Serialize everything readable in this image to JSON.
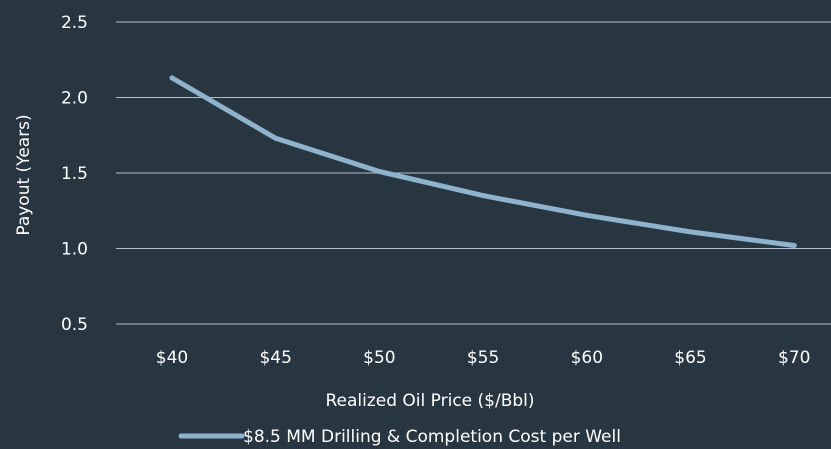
{
  "chart_data": {
    "type": "line",
    "categories": [
      "$40",
      "$45",
      "$50",
      "$55",
      "$60",
      "$65",
      "$70"
    ],
    "series": [
      {
        "name": "$8.5 MM Drilling & Completion Cost per Well",
        "values": [
          2.13,
          1.73,
          1.51,
          1.35,
          1.22,
          1.11,
          1.02
        ]
      }
    ],
    "xlabel": "Realized Oil Price ($/Bbl)",
    "ylabel": "Payout (Years)",
    "ylim": [
      0.5,
      2.5
    ],
    "yticks": [
      "0.5",
      "1.0",
      "1.5",
      "2.0",
      "2.5"
    ],
    "grid": "horizontal",
    "legend": "bottom-center",
    "colors": {
      "background": "#283642",
      "series": "#8fb3cc",
      "grid": "#b7c0c8",
      "text": "#ffffff"
    }
  }
}
